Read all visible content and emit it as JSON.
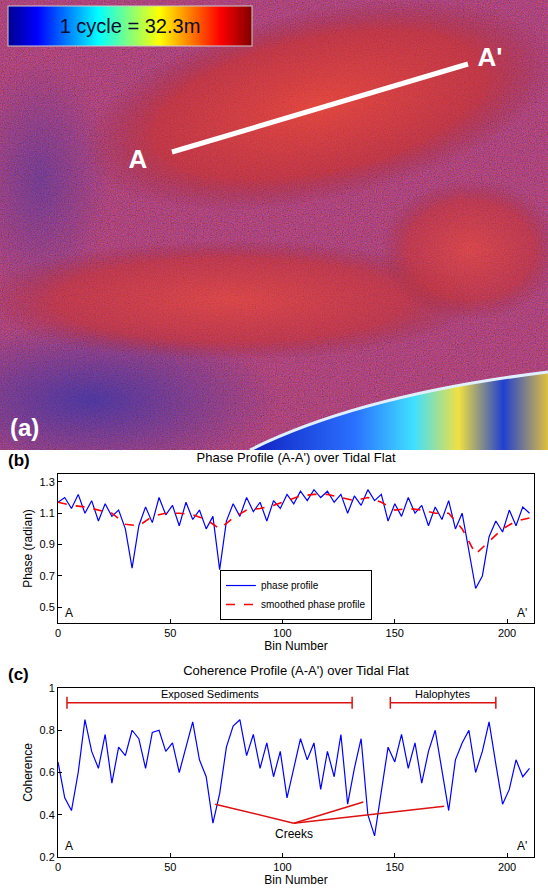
{
  "image": {
    "label": "(a)",
    "scale_text": "1 cycle = 32.3m",
    "start": "A",
    "end": "A'"
  },
  "chart_data": [
    {
      "type": "line",
      "panel_label": "(b)",
      "title": "Phase Profile (A-A') over Tidal Flat",
      "x_label": "Bin Number",
      "y_label": "Phase (radian)",
      "end_labels": [
        "A",
        "A'"
      ],
      "xlim": [
        0,
        212
      ],
      "xticks": [
        0,
        50,
        100,
        150,
        200
      ],
      "ylim": [
        0.4,
        1.35
      ],
      "yticks": [
        0.5,
        0.7,
        0.9,
        1.1,
        1.3
      ],
      "grid": false,
      "legend": "bottom",
      "series": [
        {
          "name": "phase profile",
          "color": "#0000ff",
          "line_style": "solid",
          "x": [
            0,
            3,
            6,
            9,
            12,
            15,
            18,
            21,
            24,
            27,
            30,
            33,
            36,
            39,
            42,
            45,
            48,
            51,
            54,
            57,
            60,
            63,
            66,
            69,
            72,
            75,
            78,
            81,
            84,
            87,
            90,
            93,
            96,
            99,
            102,
            105,
            108,
            111,
            114,
            117,
            120,
            123,
            126,
            129,
            132,
            135,
            138,
            141,
            144,
            147,
            150,
            153,
            156,
            159,
            162,
            165,
            168,
            171,
            174,
            177,
            180,
            183,
            186,
            189,
            192,
            195,
            198,
            201,
            204,
            207,
            210
          ],
          "values": [
            1.17,
            1.2,
            1.13,
            1.22,
            1.1,
            1.18,
            1.05,
            1.16,
            1.08,
            1.12,
            1.0,
            0.75,
            1.02,
            1.14,
            1.04,
            1.2,
            1.09,
            1.15,
            1.02,
            1.17,
            1.06,
            1.12,
            1.0,
            1.08,
            0.74,
            1.05,
            1.16,
            1.08,
            1.2,
            1.11,
            1.17,
            1.05,
            1.18,
            1.13,
            1.22,
            1.16,
            1.24,
            1.18,
            1.25,
            1.2,
            1.24,
            1.17,
            1.22,
            1.1,
            1.21,
            1.15,
            1.25,
            1.18,
            1.22,
            1.05,
            1.16,
            1.08,
            1.2,
            1.1,
            1.15,
            1.02,
            1.14,
            1.06,
            1.18,
            1.0,
            1.1,
            0.85,
            0.62,
            0.7,
            0.95,
            1.05,
            0.98,
            1.12,
            1.02,
            1.14,
            1.1
          ]
        },
        {
          "name": "smoothed phase profile",
          "color": "#ff0000",
          "line_style": "dashed",
          "x": [
            0,
            6,
            12,
            18,
            24,
            30,
            36,
            42,
            48,
            54,
            60,
            66,
            72,
            78,
            84,
            90,
            96,
            102,
            108,
            114,
            120,
            126,
            132,
            138,
            144,
            150,
            156,
            162,
            168,
            174,
            180,
            186,
            192,
            198,
            204,
            210
          ],
          "values": [
            1.17,
            1.15,
            1.14,
            1.12,
            1.1,
            1.03,
            1.02,
            1.08,
            1.1,
            1.1,
            1.09,
            1.06,
            1.0,
            1.07,
            1.12,
            1.13,
            1.15,
            1.18,
            1.21,
            1.22,
            1.22,
            1.2,
            1.18,
            1.2,
            1.17,
            1.12,
            1.13,
            1.12,
            1.1,
            1.1,
            1.0,
            0.84,
            0.92,
            1.0,
            1.05,
            1.07
          ]
        }
      ]
    },
    {
      "type": "line",
      "panel_label": "(c)",
      "title": "Coherence Profile (A-A') over Tidal Flat",
      "x_label": "Bin Number",
      "y_label": "Coherence",
      "end_labels": [
        "A",
        "A'"
      ],
      "xlim": [
        0,
        212
      ],
      "xticks": [
        0,
        50,
        100,
        150,
        200
      ],
      "ylim": [
        0.2,
        1
      ],
      "yticks": [
        0.2,
        0.4,
        0.6,
        0.8,
        1
      ],
      "grid": false,
      "series": [
        {
          "name": "coherence",
          "color": "#0000ff",
          "line_style": "solid",
          "x": [
            0,
            3,
            6,
            9,
            12,
            15,
            18,
            21,
            24,
            27,
            30,
            33,
            36,
            39,
            42,
            45,
            48,
            51,
            54,
            57,
            60,
            63,
            66,
            69,
            72,
            75,
            78,
            81,
            84,
            87,
            90,
            93,
            96,
            99,
            102,
            105,
            108,
            111,
            114,
            117,
            120,
            123,
            126,
            129,
            132,
            135,
            138,
            141,
            144,
            147,
            150,
            153,
            156,
            159,
            162,
            165,
            168,
            171,
            174,
            177,
            180,
            183,
            186,
            189,
            192,
            195,
            198,
            201,
            204,
            207,
            210
          ],
          "values": [
            0.65,
            0.48,
            0.42,
            0.6,
            0.85,
            0.7,
            0.62,
            0.78,
            0.55,
            0.72,
            0.68,
            0.8,
            0.76,
            0.62,
            0.79,
            0.8,
            0.7,
            0.74,
            0.6,
            0.72,
            0.84,
            0.66,
            0.58,
            0.36,
            0.5,
            0.72,
            0.82,
            0.85,
            0.68,
            0.78,
            0.62,
            0.74,
            0.58,
            0.7,
            0.48,
            0.62,
            0.76,
            0.66,
            0.74,
            0.52,
            0.7,
            0.58,
            0.78,
            0.45,
            0.62,
            0.76,
            0.4,
            0.3,
            0.5,
            0.72,
            0.65,
            0.78,
            0.62,
            0.74,
            0.55,
            0.7,
            0.8,
            0.6,
            0.42,
            0.66,
            0.74,
            0.8,
            0.6,
            0.7,
            0.84,
            0.64,
            0.45,
            0.52,
            0.66,
            0.58,
            0.62
          ]
        }
      ],
      "ranges": [
        {
          "label": "Exposed Sediments",
          "x0": 4,
          "x1": 131,
          "y": 0.93,
          "color": "#dd1111"
        },
        {
          "label": "Halophytes",
          "x0": 148,
          "x1": 195,
          "y": 0.93,
          "color": "#dd1111"
        }
      ],
      "pointers": [
        {
          "label": "Creeks",
          "x": 105,
          "y": 0.36,
          "color": "#dd1111",
          "targets": [
            [
              70,
              0.45
            ],
            [
              136,
              0.46
            ],
            [
              172,
              0.44
            ]
          ]
        }
      ]
    }
  ]
}
